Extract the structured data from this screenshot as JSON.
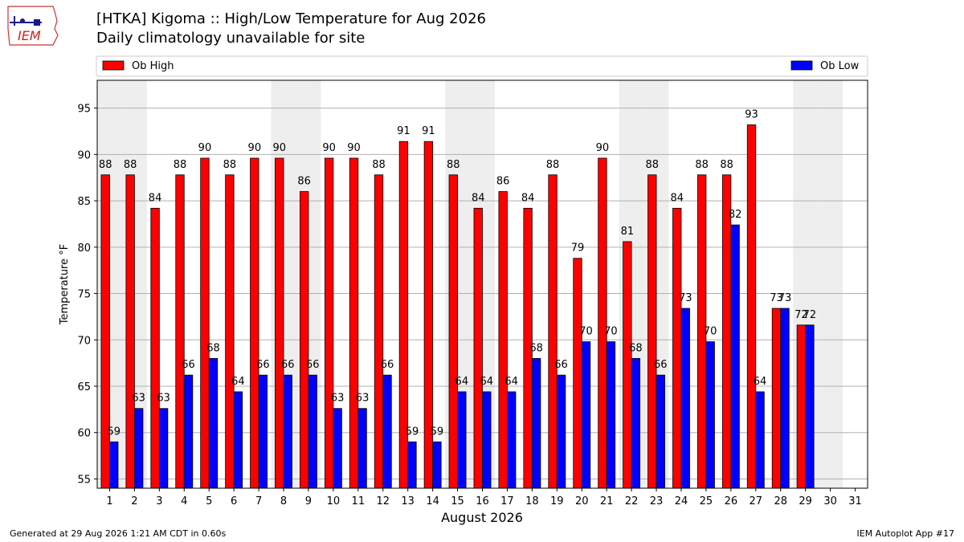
{
  "logo": {
    "text": "IEM"
  },
  "title": "[HTKA] Kigoma :: High/Low Temperature for Aug 2026",
  "subtitle": "Daily climatology unavailable for site",
  "footer": {
    "generated": "Generated at 29 Aug 2026 1:21 AM CDT in 0.60s",
    "app": "IEM Autoplot App #17"
  },
  "colors": {
    "high": "#ff0000",
    "low": "#0000ff",
    "weekend_band": "#eeeeee",
    "grid": "#b0b0b0"
  },
  "chart_data": {
    "type": "bar",
    "xlabel": "August 2026",
    "ylabel": "Temperature °F",
    "ylim": [
      54,
      98
    ],
    "yticks": [
      55,
      60,
      65,
      70,
      75,
      80,
      85,
      90,
      95
    ],
    "grid": true,
    "legend": {
      "placement": "top",
      "entries": [
        "Ob High",
        "Ob Low"
      ]
    },
    "categories": [
      "1",
      "2",
      "3",
      "4",
      "5",
      "6",
      "7",
      "8",
      "9",
      "10",
      "11",
      "12",
      "13",
      "14",
      "15",
      "16",
      "17",
      "18",
      "19",
      "20",
      "21",
      "22",
      "23",
      "24",
      "25",
      "26",
      "27",
      "28",
      "29",
      "30",
      "31"
    ],
    "shaded_days": [
      1,
      2,
      8,
      9,
      15,
      16,
      22,
      23,
      29,
      30
    ],
    "series": [
      {
        "name": "Ob High",
        "values": [
          87.8,
          87.8,
          84.2,
          87.8,
          89.6,
          87.8,
          89.6,
          89.6,
          86.0,
          89.6,
          89.6,
          87.8,
          91.4,
          91.4,
          87.8,
          84.2,
          86.0,
          84.2,
          87.8,
          78.8,
          89.6,
          80.6,
          87.8,
          84.2,
          87.8,
          87.8,
          93.2,
          73.4,
          71.6,
          null,
          null
        ],
        "labels": [
          "88",
          "88",
          "84",
          "88",
          "90",
          "88",
          "90",
          "90",
          "86",
          "90",
          "90",
          "88",
          "91",
          "91",
          "88",
          "84",
          "86",
          "84",
          "88",
          "79",
          "90",
          "81",
          "88",
          "84",
          "88",
          "88",
          "93",
          "73",
          "72",
          "",
          ""
        ]
      },
      {
        "name": "Ob Low",
        "values": [
          59.0,
          62.6,
          62.6,
          66.2,
          68.0,
          64.4,
          66.2,
          66.2,
          66.2,
          62.6,
          62.6,
          66.2,
          59.0,
          59.0,
          64.4,
          64.4,
          64.4,
          68.0,
          66.2,
          69.8,
          69.8,
          68.0,
          66.2,
          73.4,
          69.8,
          82.4,
          64.4,
          73.4,
          71.6,
          null,
          null
        ],
        "labels": [
          "59",
          "63",
          "63",
          "66",
          "68",
          "64",
          "66",
          "66",
          "66",
          "63",
          "63",
          "66",
          "59",
          "59",
          "64",
          "64",
          "64",
          "68",
          "66",
          "70",
          "70",
          "68",
          "66",
          "73",
          "70",
          "82",
          "64",
          "73",
          "72",
          "",
          ""
        ]
      }
    ]
  }
}
